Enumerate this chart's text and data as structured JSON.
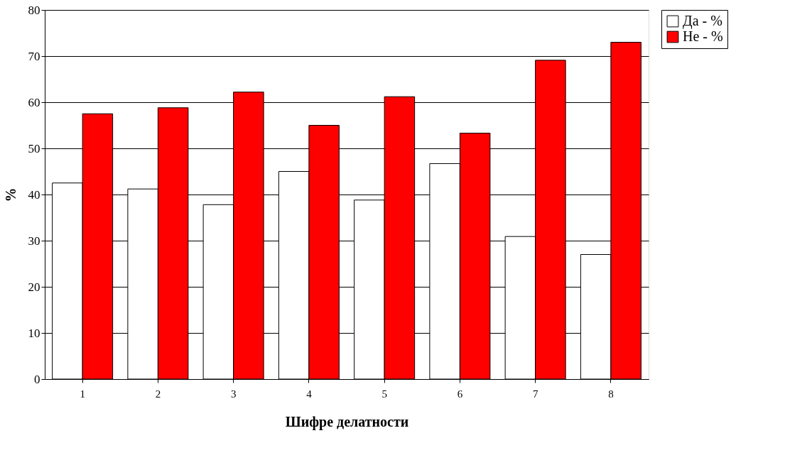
{
  "chart_data": {
    "type": "bar",
    "xlabel": "Шифре делатности",
    "ylabel": "%",
    "categories": [
      "1",
      "2",
      "3",
      "4",
      "5",
      "6",
      "7",
      "8"
    ],
    "series": [
      {
        "name": "Да - %",
        "color": "#ffffff",
        "values": [
          42.5,
          41.2,
          37.8,
          45.0,
          38.8,
          46.7,
          30.9,
          27.0
        ]
      },
      {
        "name": "Не - %",
        "color": "#ff0000",
        "values": [
          57.5,
          58.8,
          62.2,
          55.0,
          61.2,
          53.3,
          69.1,
          73.0
        ]
      }
    ],
    "ylim": [
      0,
      80
    ],
    "yticks": [
      0,
      10,
      20,
      30,
      40,
      50,
      60,
      70,
      80
    ],
    "grid": "y",
    "legend": "right"
  }
}
